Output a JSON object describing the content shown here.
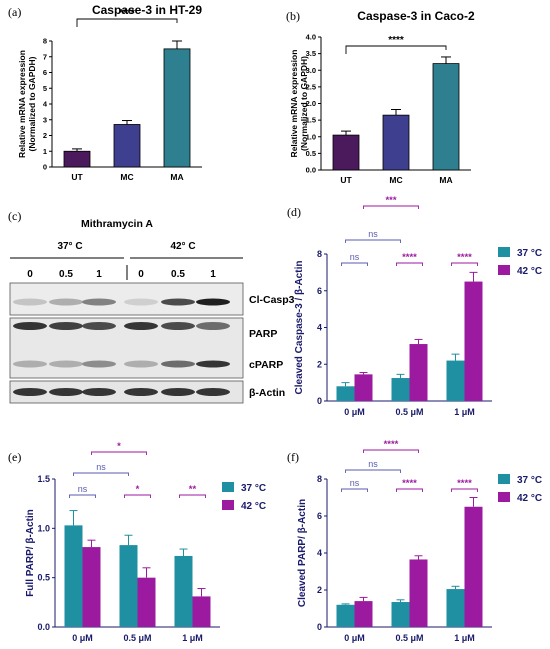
{
  "panel_labels": [
    "(a)",
    "(b)",
    "(c)",
    "(d)",
    "(e)",
    "(f)"
  ],
  "colors": {
    "ut": "#4a1a5c",
    "mc": "#3f3f8f",
    "ma": "#2e7f8f",
    "c37": "#1f8fa2",
    "c42": "#9c1aa0",
    "sig_purple": "#9c1aa0",
    "ns_line": "#5a5ab0",
    "axis_text": "#1a1a6a",
    "star_black": "#000000"
  },
  "chart_data": [
    {
      "panel": "(a)",
      "type": "bar",
      "title": "Caspase-3 in HT-29",
      "ylabel_lines": [
        "Relative mRNA expression",
        "(Normalized to GAPDH)"
      ],
      "categories": [
        "UT",
        "MC",
        "MA"
      ],
      "values": [
        1.0,
        2.7,
        7.5
      ],
      "errors": [
        0.15,
        0.25,
        0.5
      ],
      "ylim": [
        0,
        8
      ],
      "yticks": [
        "0",
        "1",
        "2",
        "3",
        "4",
        "5",
        "6",
        "7",
        "8"
      ],
      "significance": [
        {
          "from": 0,
          "to": 2,
          "label": "****"
        }
      ]
    },
    {
      "panel": "(b)",
      "type": "bar",
      "title": "Caspase-3 in Caco-2",
      "ylabel_lines": [
        "Relative mRNA expression",
        "(Normalized to GAPDH)"
      ],
      "categories": [
        "UT",
        "MC",
        "MA"
      ],
      "values": [
        1.05,
        1.65,
        3.2
      ],
      "errors": [
        0.12,
        0.17,
        0.2
      ],
      "ylim": [
        0,
        4
      ],
      "yticks": [
        "0.0",
        "0.5",
        "1.0",
        "1.5",
        "2.0",
        "2.5",
        "3.0",
        "3.5",
        "4.0"
      ],
      "significance": [
        {
          "from": 0,
          "to": 2,
          "label": "****"
        }
      ]
    },
    {
      "panel": "(d)",
      "type": "bar",
      "ylabel": "Cleaved Caspase-3 / β-Actin",
      "categories": [
        "0  μM",
        "0.5  μM",
        "1  μM"
      ],
      "series": [
        {
          "name": "37 °C",
          "values": [
            0.8,
            1.25,
            2.2
          ],
          "errors": [
            0.2,
            0.2,
            0.35
          ]
        },
        {
          "name": "42 °C",
          "values": [
            1.45,
            3.1,
            6.5
          ],
          "errors": [
            0.1,
            0.25,
            0.5
          ]
        }
      ],
      "ylim": [
        0,
        8
      ],
      "yticks": [
        "0",
        "2",
        "4",
        "6",
        "8"
      ],
      "significance": [
        {
          "group": 0,
          "label": "ns"
        },
        {
          "group": 1,
          "label": "****"
        },
        {
          "group": 2,
          "label": "****"
        },
        {
          "from_group": 0,
          "to_group": 1,
          "series": 0,
          "label": "ns"
        },
        {
          "from_group": 0,
          "to_group": 1,
          "series": 1,
          "label": "***"
        }
      ]
    },
    {
      "panel": "(e)",
      "type": "bar",
      "ylabel": "Full PARP/ β-Actin",
      "categories": [
        "0 μM",
        "0.5  μM",
        "1  μM"
      ],
      "series": [
        {
          "name": "37 °C",
          "values": [
            1.03,
            0.83,
            0.72
          ],
          "errors": [
            0.15,
            0.1,
            0.07
          ]
        },
        {
          "name": "42 °C",
          "values": [
            0.81,
            0.5,
            0.31
          ],
          "errors": [
            0.07,
            0.1,
            0.08
          ]
        }
      ],
      "ylim": [
        0,
        1.5
      ],
      "yticks": [
        "0.0",
        "0.5",
        "1.0",
        "1.5"
      ],
      "significance": [
        {
          "group": 0,
          "label": "ns"
        },
        {
          "group": 1,
          "label": "*"
        },
        {
          "group": 2,
          "label": "**"
        },
        {
          "from_group": 0,
          "to_group": 1,
          "series": 0,
          "label": "ns"
        },
        {
          "from_group": 0,
          "to_group": 1,
          "series": 1,
          "label": "*"
        }
      ]
    },
    {
      "panel": "(f)",
      "type": "bar",
      "ylabel": "Cleaved PARP/ β-Actin",
      "categories": [
        "0 μM",
        "0.5  μM",
        "1  μM"
      ],
      "series": [
        {
          "name": "37 °C",
          "values": [
            1.2,
            1.35,
            2.05
          ],
          "errors": [
            0.05,
            0.12,
            0.15
          ]
        },
        {
          "name": "42 °C",
          "values": [
            1.4,
            3.65,
            6.5
          ],
          "errors": [
            0.2,
            0.2,
            0.5
          ]
        }
      ],
      "ylim": [
        0,
        8
      ],
      "yticks": [
        "0",
        "2",
        "4",
        "6",
        "8"
      ],
      "significance": [
        {
          "group": 0,
          "label": "ns"
        },
        {
          "group": 1,
          "label": "****"
        },
        {
          "group": 2,
          "label": "****"
        },
        {
          "from_group": 0,
          "to_group": 1,
          "series": 0,
          "label": "ns"
        },
        {
          "from_group": 0,
          "to_group": 1,
          "series": 1,
          "label": "****"
        }
      ]
    }
  ],
  "western_blot": {
    "panel": "(c)",
    "title": "Mithramycin A",
    "temperatures": [
      "37° C",
      "42° C"
    ],
    "lanes": [
      "0",
      "0.5",
      "1",
      "0",
      "0.5",
      "1"
    ],
    "rows": [
      {
        "label": "Cl-Casp3",
        "intensity": [
          0.2,
          0.3,
          0.5,
          0.15,
          0.75,
          0.95
        ]
      },
      {
        "label": "PARP",
        "intensity": [
          0.85,
          0.8,
          0.75,
          0.85,
          0.75,
          0.6
        ]
      },
      {
        "label": "cPARP",
        "intensity": [
          0.3,
          0.3,
          0.45,
          0.3,
          0.6,
          0.85
        ]
      },
      {
        "label": "β-Actin",
        "intensity": [
          0.85,
          0.85,
          0.85,
          0.85,
          0.85,
          0.85
        ]
      }
    ]
  }
}
